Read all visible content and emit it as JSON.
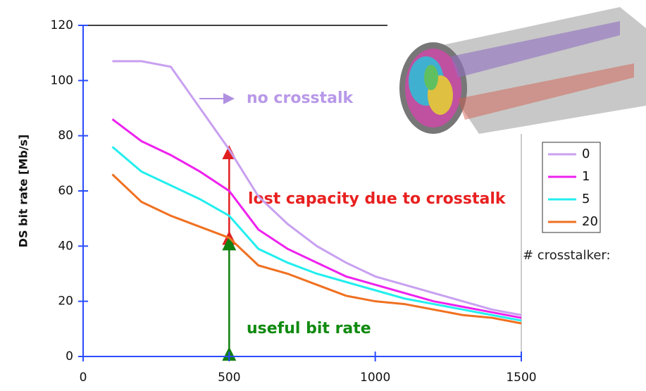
{
  "chart_data": {
    "type": "line",
    "y_label": "DS bit rate [Mb/s]",
    "x": [
      100,
      200,
      300,
      400,
      500,
      600,
      700,
      800,
      900,
      1000,
      1100,
      1200,
      1300,
      1400,
      1500
    ],
    "series": [
      {
        "name": "0",
        "color": "#c8a0f0",
        "values": [
          107,
          107,
          105,
          90,
          75,
          58,
          48,
          40,
          34,
          29,
          26,
          23,
          20,
          17,
          15
        ]
      },
      {
        "name": "1",
        "color": "#ee22ee",
        "values": [
          86,
          78,
          73,
          67,
          60,
          46,
          39,
          34,
          29,
          26,
          23,
          20,
          18,
          16,
          14
        ]
      },
      {
        "name": "5",
        "color": "#22eeee",
        "values": [
          76,
          67,
          62,
          57,
          51,
          39,
          34,
          30,
          27,
          24,
          21,
          19,
          17,
          15,
          13
        ]
      },
      {
        "name": "20",
        "color": "#f07020",
        "values": [
          66,
          56,
          51,
          47,
          43,
          33,
          30,
          26,
          22,
          20,
          19,
          17,
          15,
          14,
          12
        ]
      }
    ],
    "xlim": [
      0,
      1500
    ],
    "xticks": [
      0,
      500,
      1000,
      1500
    ],
    "ylim": [
      0,
      120
    ],
    "yticks": [
      0,
      20,
      40,
      60,
      80,
      100,
      120
    ],
    "legend_title": "# crosstalker:",
    "annotations": [
      "no crosstalk",
      "lost capacity due to crosstalk",
      "useful bit rate"
    ]
  }
}
